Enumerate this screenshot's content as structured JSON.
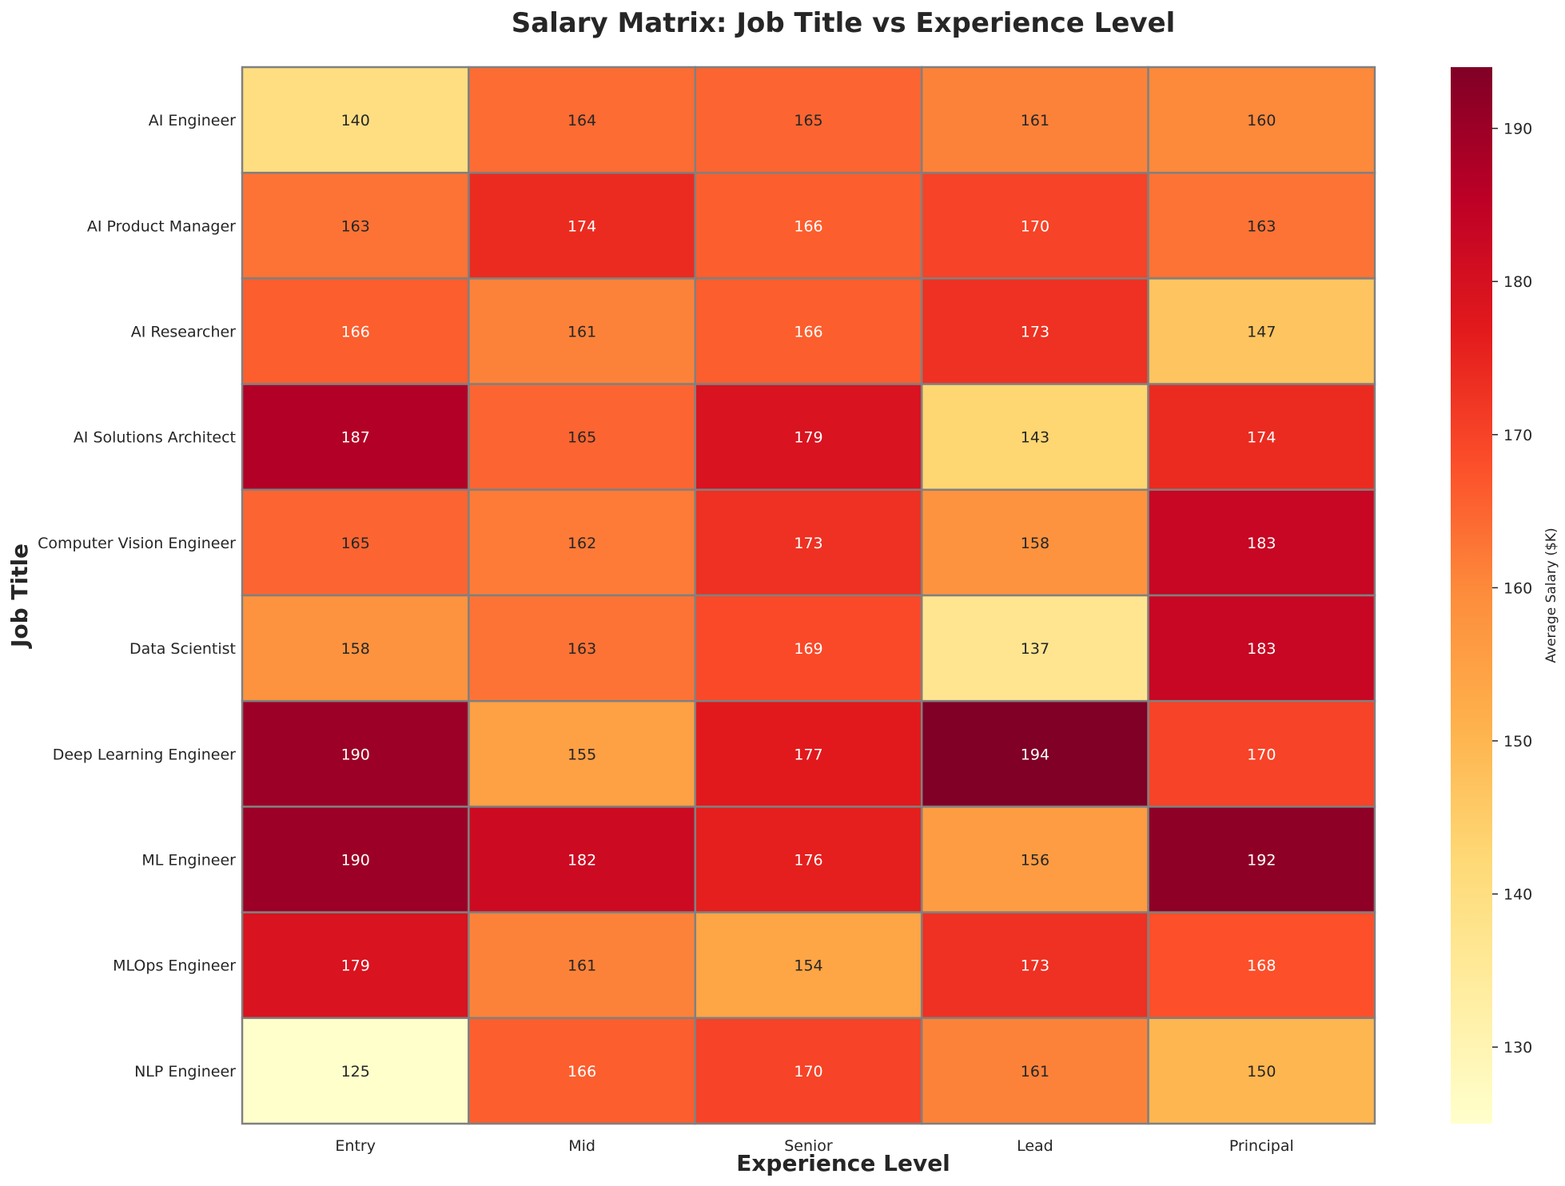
{
  "chart_data": {
    "type": "heatmap",
    "title": "Salary Matrix: Job Title vs Experience Level",
    "xlabel": "Experience Level",
    "ylabel": "Job Title",
    "x_categories": [
      "Entry",
      "Mid",
      "Senior",
      "Lead",
      "Principal"
    ],
    "y_categories": [
      "AI Engineer",
      "AI Product Manager",
      "AI Researcher",
      "AI Solutions Architect",
      "Computer Vision Engineer",
      "Data Scientist",
      "Deep Learning Engineer",
      "ML Engineer",
      "MLOps Engineer",
      "NLP Engineer"
    ],
    "values": [
      [
        140,
        164,
        165,
        161,
        160
      ],
      [
        163,
        174,
        166,
        170,
        163
      ],
      [
        166,
        161,
        166,
        173,
        147
      ],
      [
        187,
        165,
        179,
        143,
        174
      ],
      [
        165,
        162,
        173,
        158,
        183
      ],
      [
        158,
        163,
        169,
        137,
        183
      ],
      [
        190,
        155,
        177,
        194,
        170
      ],
      [
        190,
        182,
        176,
        156,
        192
      ],
      [
        179,
        161,
        154,
        173,
        168
      ],
      [
        125,
        166,
        170,
        161,
        150
      ]
    ],
    "colorbar": {
      "label": "Average Salary ($K)",
      "range": [
        125,
        194
      ],
      "ticks": [
        130,
        140,
        150,
        160,
        170,
        180,
        190
      ],
      "colormap": "YlOrRd"
    },
    "colormap_stops": [
      "#ffffcc",
      "#ffeda0",
      "#fed976",
      "#feb24c",
      "#fd8d3c",
      "#fc4e2a",
      "#e31a1c",
      "#bd0026",
      "#800026"
    ],
    "cell_border_color": "#808080",
    "grid": false
  }
}
